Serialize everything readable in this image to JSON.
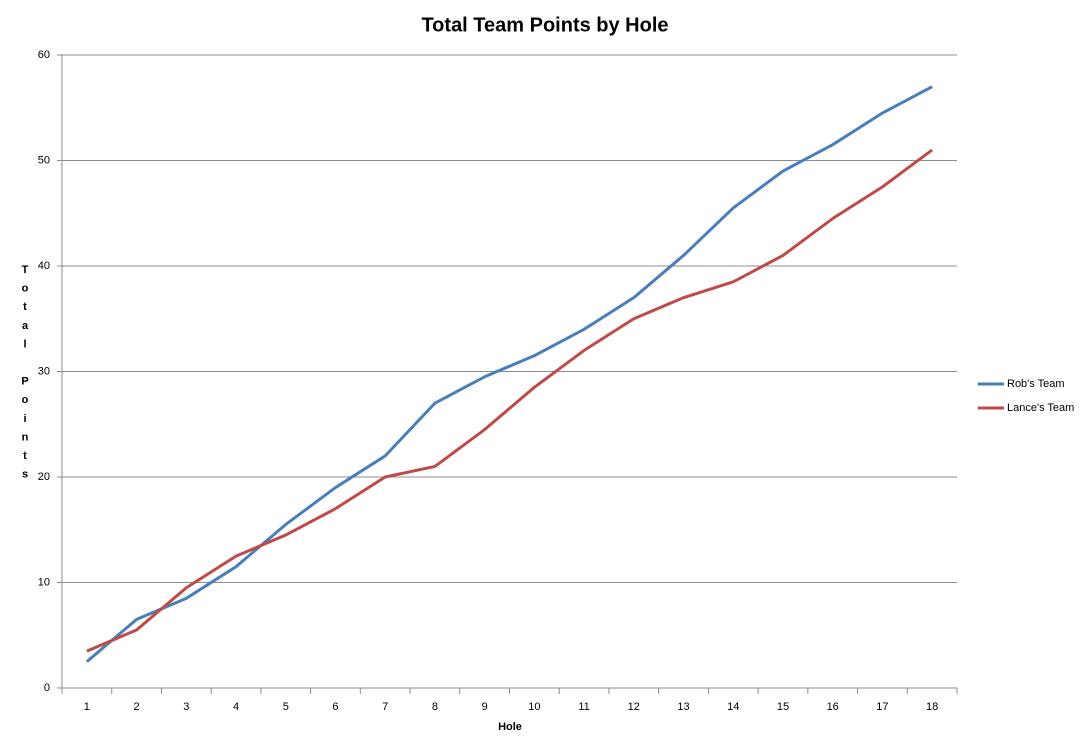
{
  "chart_data": {
    "type": "line",
    "title": "Total Team Points by Hole",
    "x_label": "Hole",
    "y_label": "Total Points",
    "categories": [
      "1",
      "2",
      "3",
      "4",
      "5",
      "6",
      "7",
      "8",
      "9",
      "10",
      "11",
      "12",
      "13",
      "14",
      "15",
      "16",
      "17",
      "18"
    ],
    "series": [
      {
        "name": "Rob's Team",
        "color": "#4a7ebb",
        "values": [
          2.5,
          6.5,
          8.5,
          11.5,
          15.5,
          19,
          22,
          27,
          29.5,
          31.5,
          34,
          37,
          41,
          45.5,
          49,
          51.5,
          54.5,
          57
        ]
      },
      {
        "name": "Lance's Team",
        "color": "#be4b48",
        "values": [
          3.5,
          5.5,
          9.5,
          12.5,
          14.5,
          17,
          20,
          21,
          24.5,
          28.5,
          32,
          35,
          37,
          38.5,
          41,
          44.5,
          47.5,
          51
        ]
      }
    ],
    "ylim": [
      0,
      60
    ],
    "yticks": [
      0,
      10,
      20,
      30,
      40,
      50,
      60
    ],
    "grid": true,
    "legend": "right"
  }
}
